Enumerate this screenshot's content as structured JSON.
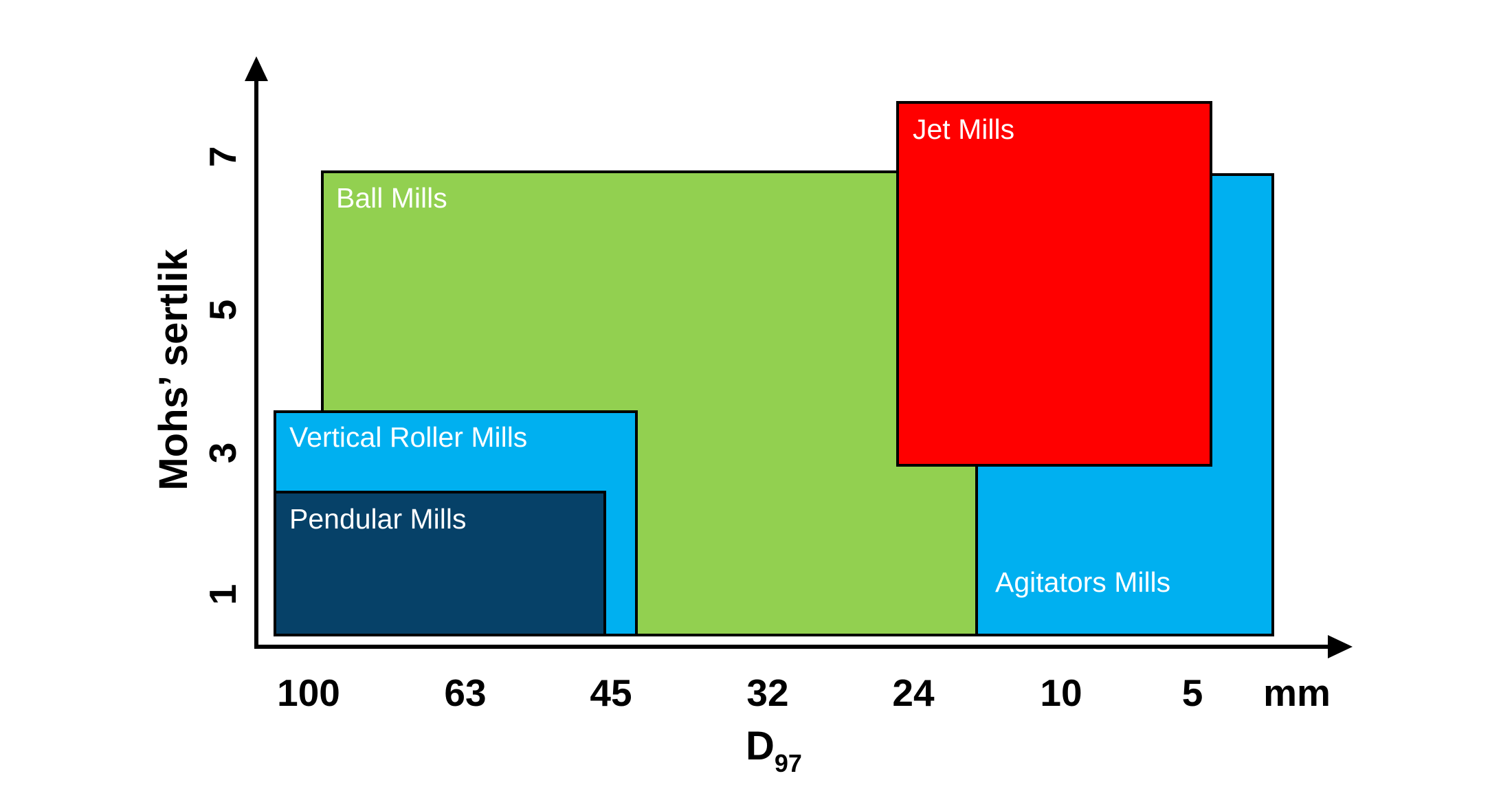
{
  "chart_data": {
    "type": "range-map",
    "xlabel_main": "D",
    "xlabel_sub": "97",
    "xunit": "mm",
    "ylabel": "Mohs’ sertlik",
    "xticks": [
      "100",
      "63",
      "45",
      "32",
      "24",
      "10",
      "5"
    ],
    "yticks": [
      "1",
      "3",
      "5",
      "7"
    ],
    "regions": [
      {
        "name": "Ball Mills",
        "d97_mm": [
          "100",
          "10"
        ],
        "mohs": [
          0.5,
          6.8
        ],
        "color": "#92d050",
        "label_color": "#ffffff"
      },
      {
        "name": "Agitators Mills",
        "d97_mm": [
          "10",
          "< 5"
        ],
        "mohs": [
          0.5,
          6.8
        ],
        "color": "#00b0f0",
        "label_color": "#ffffff"
      },
      {
        "name": "Jet Mills",
        "d97_mm": [
          "24",
          "5"
        ],
        "mohs": [
          2.7,
          7.7
        ],
        "color": "#ff0000",
        "label_color": "#ffffff"
      },
      {
        "name": "Vertical Roller Mills",
        "d97_mm": [
          "> 100",
          "45"
        ],
        "mohs": [
          0.5,
          3.6
        ],
        "color": "#00b0f0",
        "label_color": "#ffffff"
      },
      {
        "name": "Pendular Mills",
        "d97_mm": [
          "> 100",
          "45"
        ],
        "mohs": [
          0.5,
          2.5
        ],
        "color": "#064168",
        "label_color": "#ffffff"
      }
    ]
  }
}
